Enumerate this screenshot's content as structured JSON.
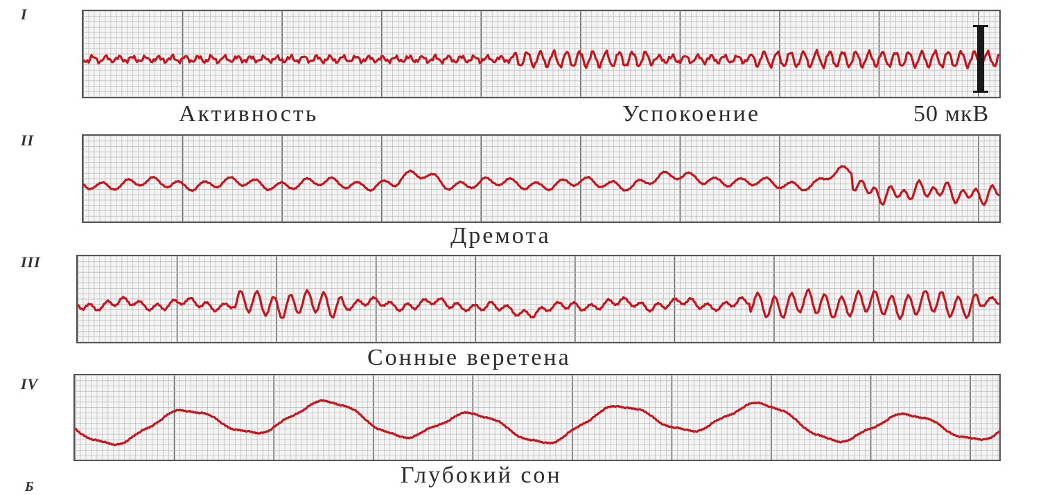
{
  "figure_letter": "Б",
  "scale_label": "50 мкВ",
  "stages": [
    {
      "numeral": "I",
      "labels": [
        "Активность",
        "Успокоение"
      ],
      "pattern": "alpha"
    },
    {
      "numeral": "II",
      "labels": [
        "Дремота"
      ],
      "pattern": "drowsy"
    },
    {
      "numeral": "III",
      "labels": [
        "Сонные веретена"
      ],
      "pattern": "spindles"
    },
    {
      "numeral": "IV",
      "labels": [
        "Глубокий  сон"
      ],
      "pattern": "delta"
    }
  ],
  "colors": {
    "trace": "#c8141c",
    "grid_fine": "#b9b9b9",
    "grid_major": "#6a6a6a",
    "paper": "#f4f4f4"
  }
}
